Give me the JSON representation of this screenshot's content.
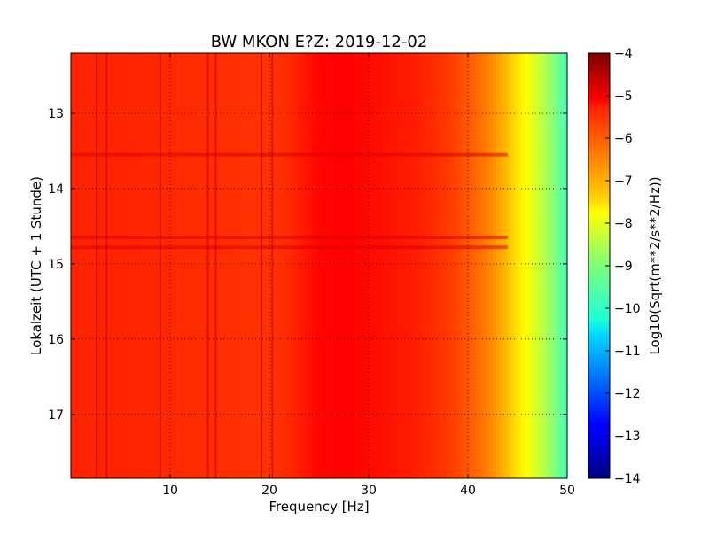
{
  "chart_data": {
    "type": "heatmap",
    "title": "BW MKON E?Z: 2019-12-02",
    "xlabel": "Frequency [Hz]",
    "ylabel": "Lokalzeit (UTC + 1 Stunde)",
    "xlim": [
      0,
      50
    ],
    "ylim": [
      12.2,
      17.85
    ],
    "y_inverted": true,
    "x_ticks": [
      10,
      20,
      30,
      40,
      50
    ],
    "x_tick_labels": [
      "10",
      "20",
      "30",
      "40",
      "50"
    ],
    "y_ticks": [
      13,
      14,
      15,
      16,
      17
    ],
    "y_tick_labels": [
      "13",
      "14",
      "15",
      "16",
      "17"
    ],
    "grid": true,
    "colormap": "jet",
    "colorbar": {
      "label": "Log10(Sqrt(m**2/s**2/Hz))",
      "range": [
        -14,
        -4
      ],
      "ticks": [
        -4,
        -5,
        -6,
        -7,
        -8,
        -9,
        -10,
        -11,
        -12,
        -13,
        -14
      ],
      "tick_labels": [
        "−4",
        "−5",
        "−6",
        "−7",
        "−8",
        "−9",
        "−10",
        "−11",
        "−12",
        "−13",
        "−14"
      ]
    },
    "spectrum_profile": {
      "frequency_hz": [
        0,
        5,
        10,
        15,
        20,
        22,
        25,
        28,
        30,
        35,
        38,
        40,
        42,
        44,
        45,
        46,
        48,
        50
      ],
      "log10_amplitude": [
        -5.6,
        -5.6,
        -5.65,
        -5.7,
        -5.75,
        -5.65,
        -5.3,
        -5.25,
        -5.35,
        -5.55,
        -5.8,
        -6.1,
        -6.5,
        -7.1,
        -7.5,
        -7.8,
        -8.6,
        -9.6
      ]
    },
    "vertical_lines_hz": [
      2.6,
      3.6,
      9.0,
      13.8,
      14.6,
      19.2,
      20.3
    ],
    "horizontal_bands_hour": [
      13.55,
      14.65,
      14.78
    ]
  }
}
